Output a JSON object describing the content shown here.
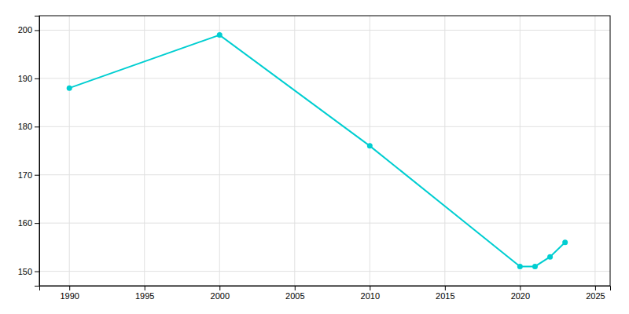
{
  "chart_data": {
    "type": "line",
    "x": [
      1990,
      2000,
      2010,
      2020,
      2021,
      2022,
      2023
    ],
    "values": [
      188,
      199,
      176,
      151,
      151,
      153,
      156
    ],
    "color": "#00CED1",
    "marker": "circle",
    "xlim": [
      1988,
      2026
    ],
    "ylim": [
      147,
      203
    ],
    "xticks": [
      1990,
      1995,
      2000,
      2005,
      2010,
      2015,
      2020,
      2025
    ],
    "yticks": [
      150,
      160,
      170,
      180,
      190,
      200
    ],
    "grid": true
  }
}
